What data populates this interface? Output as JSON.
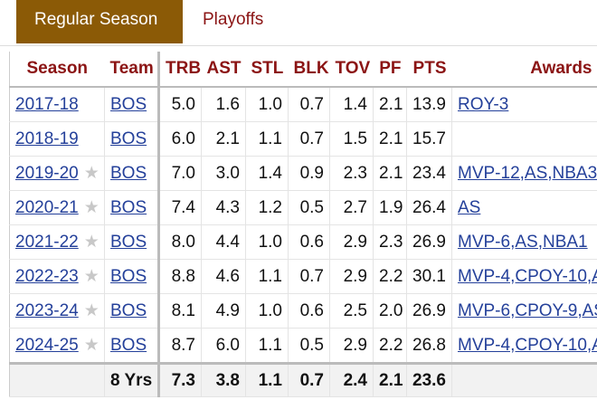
{
  "tabs": [
    "Regular Season",
    "Playoffs"
  ],
  "table": {
    "header": [
      "Season",
      "Team",
      "TRB",
      "AST",
      "STL",
      "BLK",
      "TOV",
      "PF",
      "PTS",
      "Awards"
    ],
    "rows": [
      {
        "season": "2017-18",
        "team": "BOS",
        "stats": [
          "5.0",
          "1.6",
          "1.0",
          "0.7",
          "1.4",
          "2.1",
          "13.9"
        ],
        "awards": "ROY-3"
      },
      {
        "season": "2018-19",
        "team": "BOS",
        "stats": [
          "6.0",
          "2.1",
          "1.1",
          "0.7",
          "1.5",
          "2.1",
          "15.7"
        ]
      },
      {
        "season": "2019-20",
        "star": true,
        "team": "BOS",
        "stats": [
          "7.0",
          "3.0",
          "1.4",
          "0.9",
          "2.3",
          "2.1",
          "23.4"
        ],
        "awards": "MVP-12,AS,NBA3"
      },
      {
        "season": "2020-21",
        "star": true,
        "team": "BOS",
        "stats": [
          "7.4",
          "4.3",
          "1.2",
          "0.5",
          "2.7",
          "1.9",
          "26.4"
        ],
        "awards": "AS"
      },
      {
        "season": "2021-22",
        "star": true,
        "team": "BOS",
        "stats": [
          "8.0",
          "4.4",
          "1.0",
          "0.6",
          "2.9",
          "2.3",
          "26.9"
        ],
        "awards": "MVP-6,AS,NBA1"
      },
      {
        "season": "2022-23",
        "star": true,
        "team": "BOS",
        "stats": [
          "8.8",
          "4.6",
          "1.1",
          "0.7",
          "2.9",
          "2.2",
          "30.1"
        ],
        "awards": "MVP-4,CPOY-10,A"
      },
      {
        "season": "2023-24",
        "star": true,
        "team": "BOS",
        "stats": [
          "8.1",
          "4.9",
          "1.0",
          "0.6",
          "2.5",
          "2.0",
          "26.9"
        ],
        "awards": "MVP-6,CPOY-9,AS"
      },
      {
        "season": "2024-25",
        "star": true,
        "team": "BOS",
        "stats": [
          "8.7",
          "6.0",
          "1.1",
          "0.5",
          "2.9",
          "2.2",
          "26.8"
        ],
        "awards": "MVP-4,CPOY-10,A"
      }
    ],
    "footer": {
      "label": "8 Yrs",
      "stats": [
        "7.3",
        "3.8",
        "1.1",
        "0.7",
        "2.4",
        "2.1",
        "23.6"
      ]
    }
  }
}
